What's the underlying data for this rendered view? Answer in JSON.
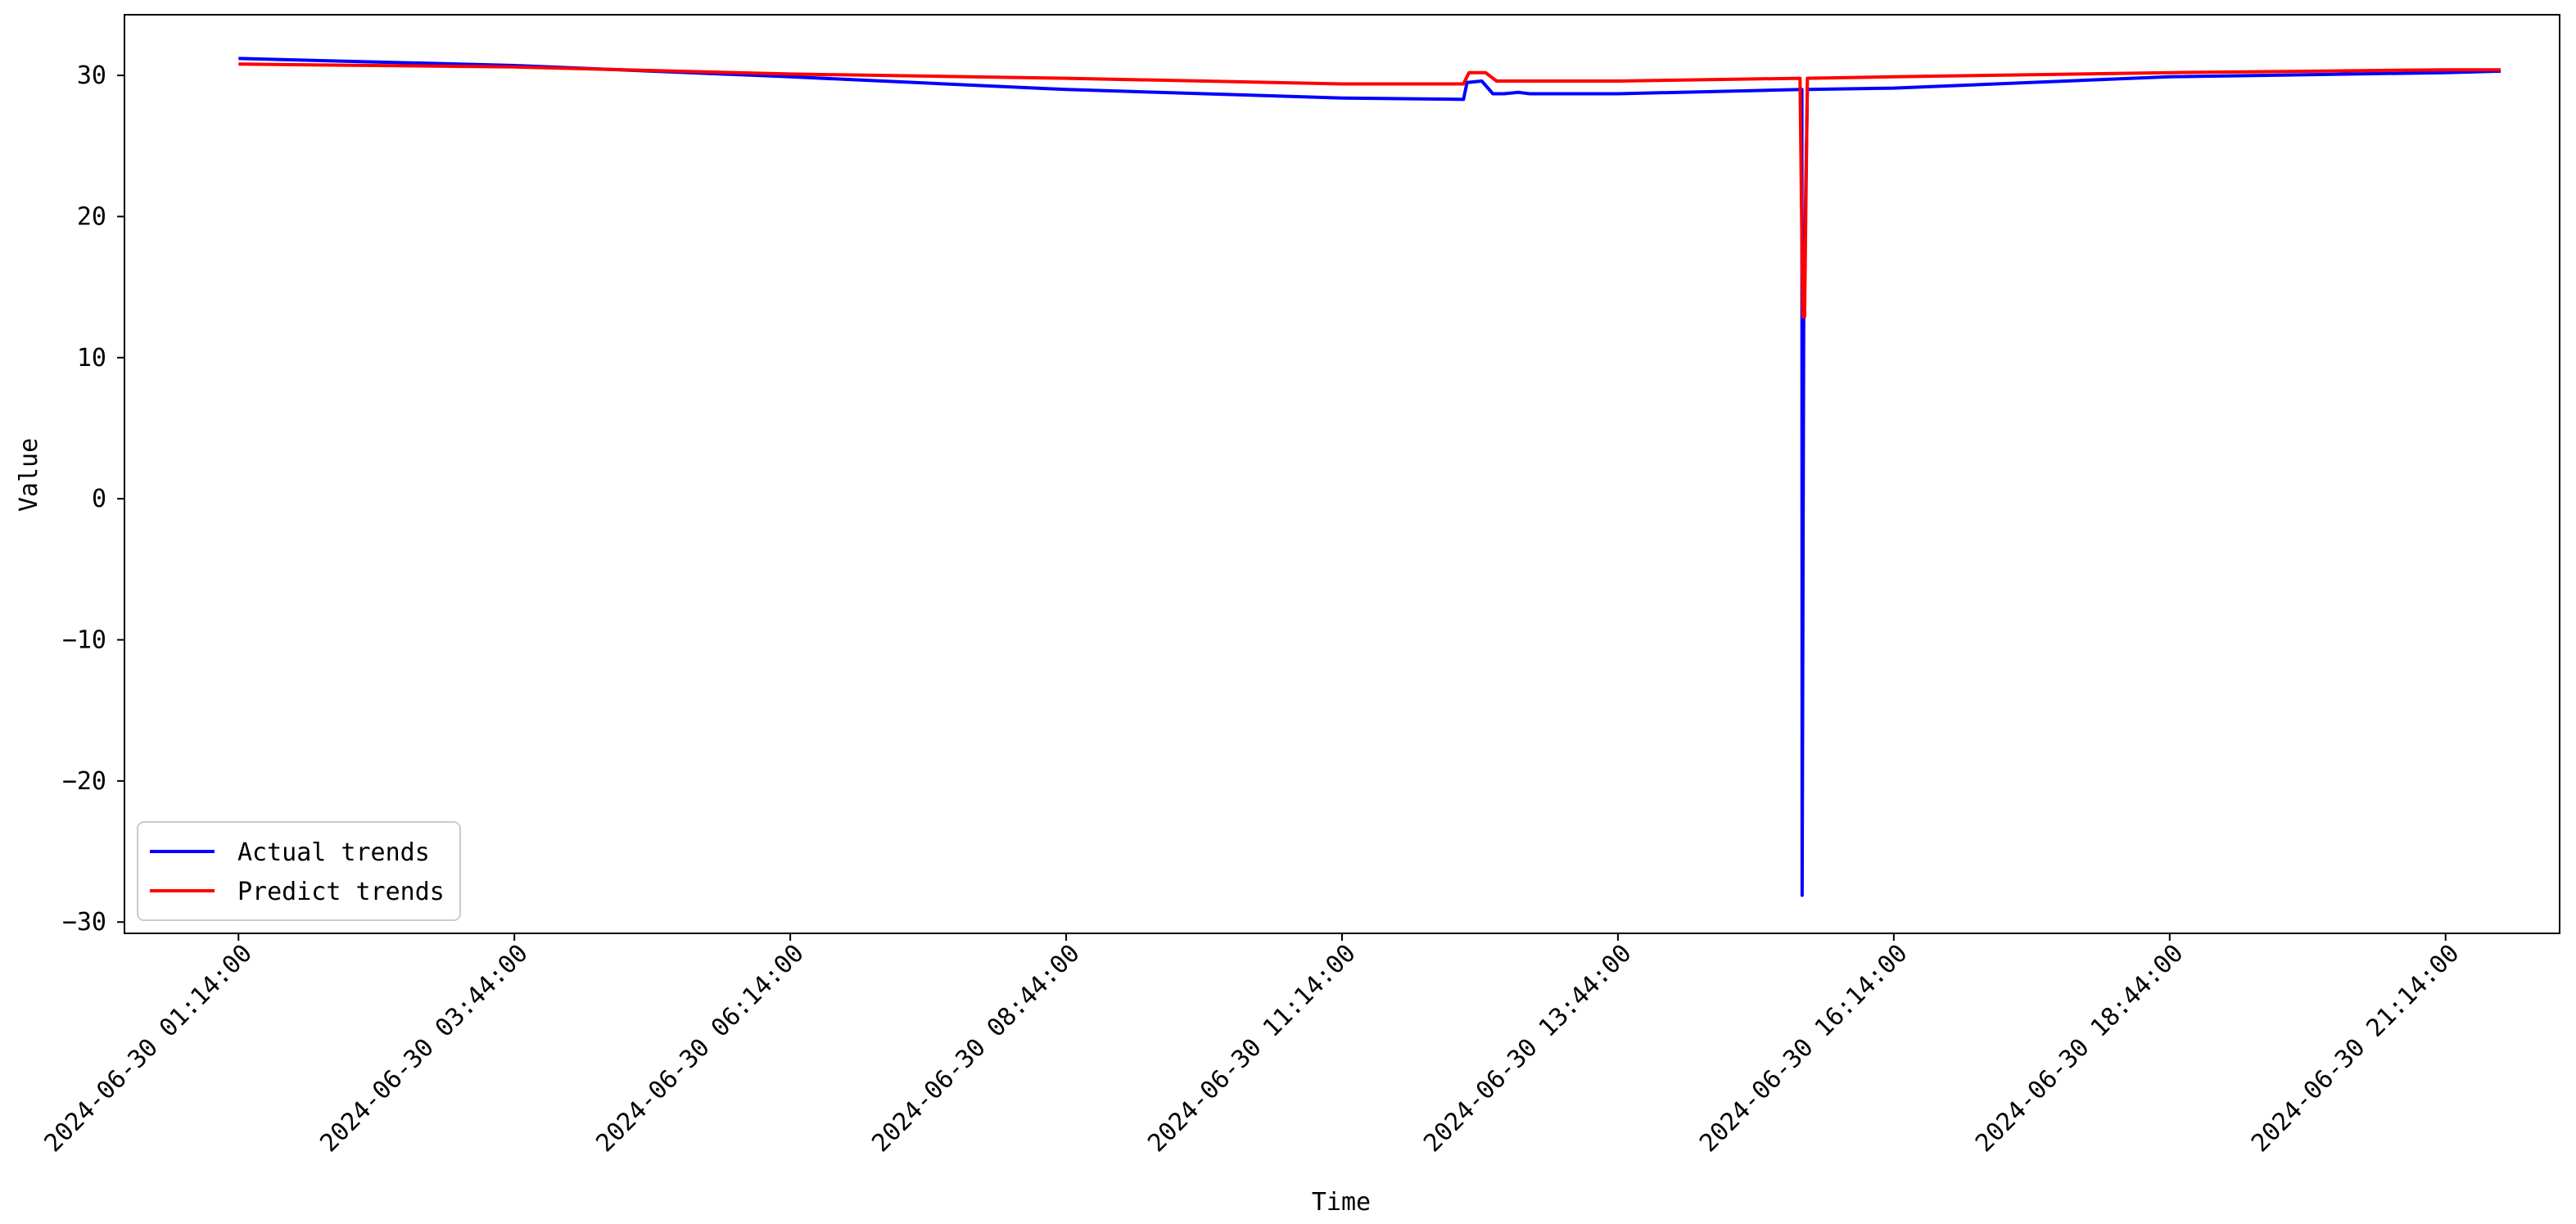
{
  "chart_data": {
    "type": "line",
    "xlabel": "Time",
    "ylabel": "Value",
    "x_axis_type": "datetime",
    "x_tick_labels": [
      "2024-06-30 01:14:00",
      "2024-06-30 03:44:00",
      "2024-06-30 06:14:00",
      "2024-06-30 08:44:00",
      "2024-06-30 11:14:00",
      "2024-06-30 13:44:00",
      "2024-06-30 16:14:00",
      "2024-06-30 18:44:00",
      "2024-06-30 21:14:00"
    ],
    "x_tick_values": [
      "2024-06-30 01:14:00",
      "2024-06-30 03:44:00",
      "2024-06-30 06:14:00",
      "2024-06-30 08:44:00",
      "2024-06-30 11:14:00",
      "2024-06-30 13:44:00",
      "2024-06-30 16:14:00",
      "2024-06-30 18:44:00",
      "2024-06-30 21:14:00"
    ],
    "xlim": [
      "2024-06-30 00:12:00",
      "2024-06-30 22:16:00"
    ],
    "y_ticks": [
      30,
      20,
      10,
      0,
      -10,
      -20,
      -30
    ],
    "ylim": [
      -30.8,
      34.3
    ],
    "grid": false,
    "legend_position": "lower-left",
    "series": [
      {
        "name": "Actual trends",
        "color": "#0000ff",
        "points": [
          [
            "2024-06-30 01:14:00",
            31.2
          ],
          [
            "2024-06-30 03:44:00",
            30.7
          ],
          [
            "2024-06-30 06:14:00",
            29.9
          ],
          [
            "2024-06-30 08:44:00",
            29.0
          ],
          [
            "2024-06-30 11:14:00",
            28.4
          ],
          [
            "2024-06-30 12:20:00",
            28.3
          ],
          [
            "2024-06-30 12:22:00",
            29.5
          ],
          [
            "2024-06-30 12:30:00",
            29.6
          ],
          [
            "2024-06-30 12:36:00",
            28.7
          ],
          [
            "2024-06-30 12:42:00",
            28.7
          ],
          [
            "2024-06-30 12:50:00",
            28.8
          ],
          [
            "2024-06-30 12:56:00",
            28.7
          ],
          [
            "2024-06-30 13:44:00",
            28.7
          ],
          [
            "2024-06-30 15:24:00",
            29.0
          ],
          [
            "2024-06-30 15:24:10",
            -28.1
          ],
          [
            "2024-06-30 15:25:00",
            12.5
          ],
          [
            "2024-06-30 15:27:00",
            29.0
          ],
          [
            "2024-06-30 16:14:00",
            29.1
          ],
          [
            "2024-06-30 18:44:00",
            29.9
          ],
          [
            "2024-06-30 21:14:00",
            30.2
          ],
          [
            "2024-06-30 21:44:00",
            30.3
          ]
        ]
      },
      {
        "name": "Predict trends",
        "color": "#ff0000",
        "points": [
          [
            "2024-06-30 01:14:00",
            30.8
          ],
          [
            "2024-06-30 03:44:00",
            30.6
          ],
          [
            "2024-06-30 06:14:00",
            30.1
          ],
          [
            "2024-06-30 08:44:00",
            29.8
          ],
          [
            "2024-06-30 11:14:00",
            29.4
          ],
          [
            "2024-06-30 12:20:00",
            29.4
          ],
          [
            "2024-06-30 12:23:00",
            30.2
          ],
          [
            "2024-06-30 12:32:00",
            30.2
          ],
          [
            "2024-06-30 12:38:00",
            29.6
          ],
          [
            "2024-06-30 13:44:00",
            29.6
          ],
          [
            "2024-06-30 15:23:00",
            29.8
          ],
          [
            "2024-06-30 15:24:30",
            12.9
          ],
          [
            "2024-06-30 15:25:30",
            12.9
          ],
          [
            "2024-06-30 15:27:00",
            29.8
          ],
          [
            "2024-06-30 16:14:00",
            29.9
          ],
          [
            "2024-06-30 18:44:00",
            30.2
          ],
          [
            "2024-06-30 21:14:00",
            30.4
          ],
          [
            "2024-06-30 21:44:00",
            30.4
          ]
        ]
      }
    ]
  }
}
